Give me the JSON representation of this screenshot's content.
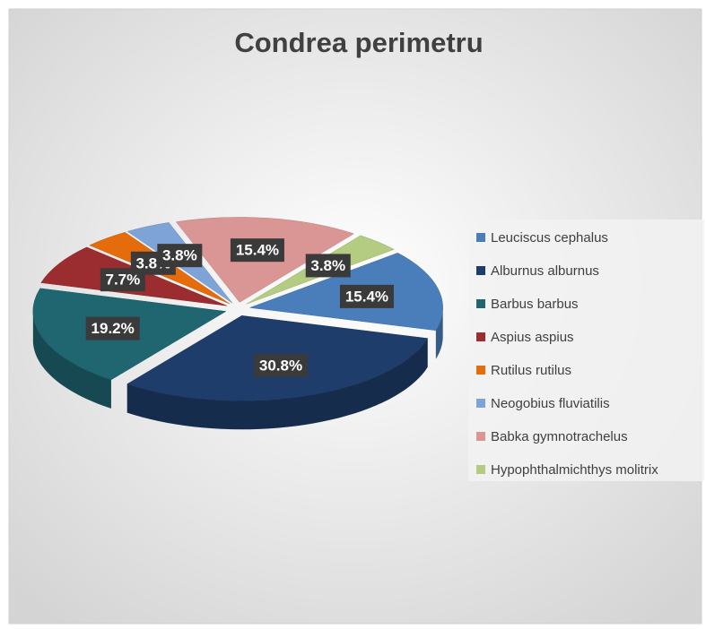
{
  "chart_data": {
    "type": "pie",
    "title": "Condrea perimetru",
    "categories": [
      "Leuciscus cephalus",
      "Alburnus alburnus",
      "Barbus barbus",
      "Aspius aspius",
      "Rutilus rutilus",
      "Neogobius fluviatilis",
      "Babka gymnotrachelus",
      "Hypophthalmichthys molitrix"
    ],
    "values": [
      15.4,
      30.8,
      19.2,
      7.7,
      3.8,
      3.8,
      15.4,
      3.8
    ],
    "value_labels": [
      "15.4%",
      "30.8%",
      "19.2%",
      "7.7%",
      "3.8%",
      "3.8%",
      "15.4%",
      "3.8%"
    ],
    "colors": [
      "#4a7ebb",
      "#1f3d6b",
      "#1f6671",
      "#9b2d30",
      "#e46c0a",
      "#7ea3d6",
      "#d99694",
      "#b3cc82"
    ],
    "legend": "right"
  }
}
